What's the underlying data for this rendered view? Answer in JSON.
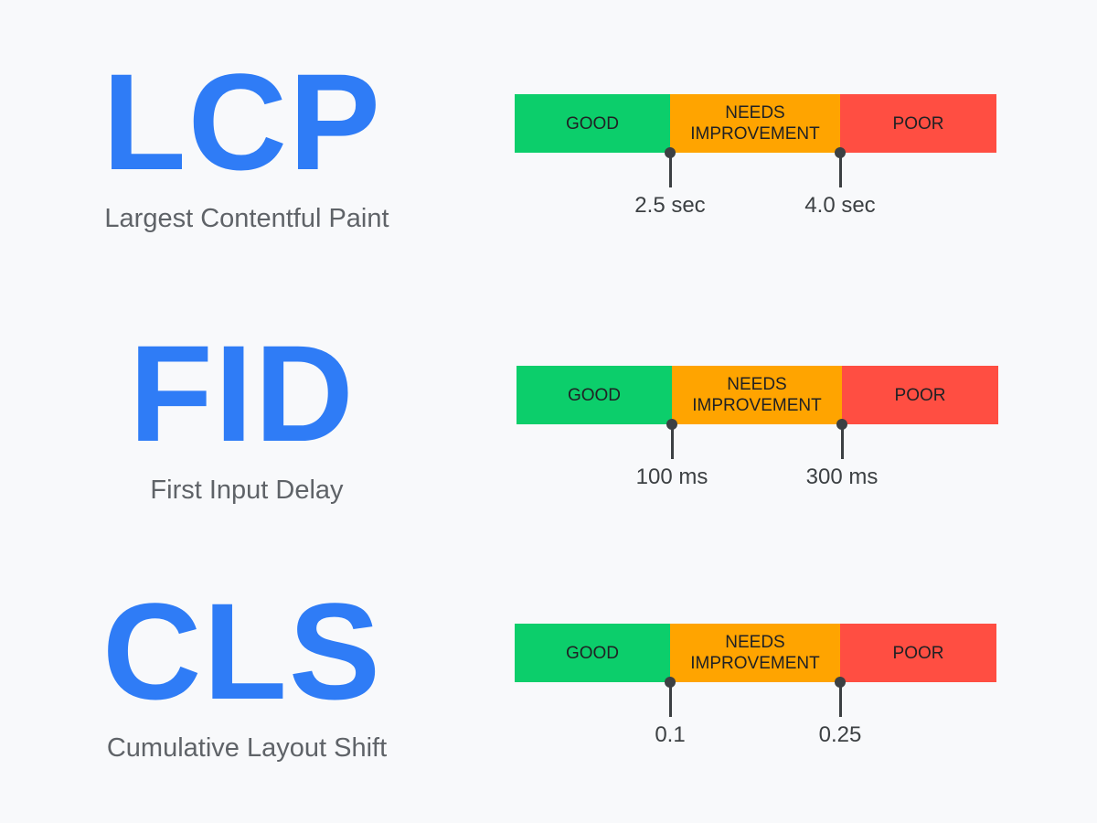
{
  "colors": {
    "good": "#0cce6b",
    "needs_improvement": "#ffa400",
    "poor": "#ff4e42",
    "accent": "#2f7cf6",
    "background": "#f8f9fb"
  },
  "metrics": [
    {
      "abbr": "LCP",
      "name": "Largest Contentful Paint",
      "good": "GOOD",
      "needs": "NEEDS IMPROVEMENT",
      "poor": "POOR",
      "threshold1": "2.5 sec",
      "threshold2": "4.0 sec"
    },
    {
      "abbr": "FID",
      "name": "First Input Delay",
      "good": "GOOD",
      "needs": "NEEDS IMPROVEMENT",
      "poor": "POOR",
      "threshold1": "100 ms",
      "threshold2": "300 ms"
    },
    {
      "abbr": "CLS",
      "name": "Cumulative Layout Shift",
      "good": "GOOD",
      "needs": "NEEDS IMPROVEMENT",
      "poor": "POOR",
      "threshold1": "0.1",
      "threshold2": "0.25"
    }
  ]
}
